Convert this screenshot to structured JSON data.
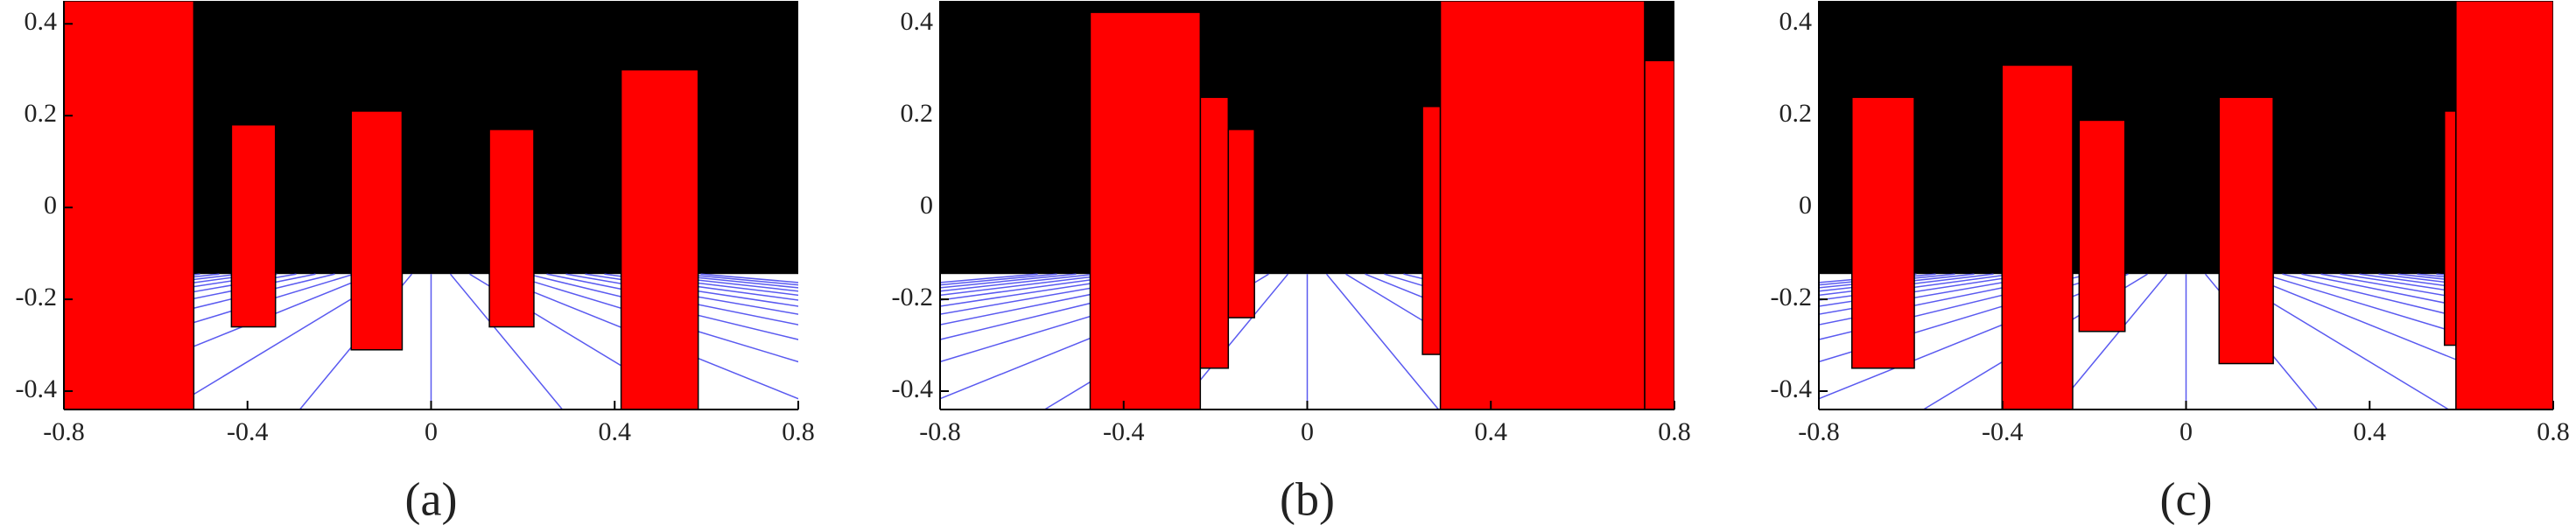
{
  "chart_data": [
    {
      "type": "rect",
      "caption": "(a)",
      "xlim": [
        -0.8,
        0.8
      ],
      "ylim": [
        -0.44,
        0.45
      ],
      "xticks": [
        -0.8,
        -0.4,
        0,
        0.4,
        0.8
      ],
      "yticks": [
        -0.4,
        -0.2,
        0,
        0.2,
        0.4
      ],
      "horizon": -0.145,
      "sky_color": "#000000",
      "floor_color": "#ffffff",
      "line_color": "#5a5af0",
      "color": "#ff0000",
      "rects": [
        {
          "x": [
            -0.8,
            -0.517
          ],
          "y": [
            -0.44,
            0.45
          ]
        },
        {
          "x": [
            -0.435,
            -0.339
          ],
          "y": [
            -0.26,
            0.18
          ]
        },
        {
          "x": [
            -0.174,
            -0.063
          ],
          "y": [
            -0.31,
            0.21
          ]
        },
        {
          "x": [
            0.127,
            0.224
          ],
          "y": [
            -0.26,
            0.17
          ]
        },
        {
          "x": [
            0.414,
            0.582
          ],
          "y": [
            -0.44,
            0.3
          ]
        }
      ]
    },
    {
      "type": "rect",
      "caption": "(b)",
      "xlim": [
        -0.8,
        0.8
      ],
      "ylim": [
        -0.44,
        0.45
      ],
      "xticks": [
        -0.8,
        -0.4,
        0,
        0.4,
        0.8
      ],
      "yticks": [
        -0.4,
        -0.2,
        0,
        0.2,
        0.4
      ],
      "horizon": -0.145,
      "sky_color": "#000000",
      "floor_color": "#ffffff",
      "line_color": "#5a5af0",
      "color": "#ff0000",
      "rects": [
        {
          "x": [
            -0.233,
            -0.172
          ],
          "y": [
            -0.35,
            0.24
          ]
        },
        {
          "x": [
            -0.172,
            -0.115
          ],
          "y": [
            -0.24,
            0.17
          ]
        },
        {
          "x": [
            -0.473,
            -0.233
          ],
          "y": [
            -0.44,
            0.425
          ]
        },
        {
          "x": [
            0.251,
            0.29
          ],
          "y": [
            -0.32,
            0.22
          ]
        },
        {
          "x": [
            0.735,
            0.8
          ],
          "y": [
            -0.44,
            0.32
          ]
        },
        {
          "x": [
            0.29,
            0.735
          ],
          "y": [
            -0.44,
            0.45
          ]
        }
      ]
    },
    {
      "type": "rect",
      "caption": "(c)",
      "xlim": [
        -0.8,
        0.8
      ],
      "ylim": [
        -0.44,
        0.45
      ],
      "xticks": [
        -0.8,
        -0.4,
        0,
        0.4,
        0.8
      ],
      "yticks": [
        -0.4,
        -0.2,
        0,
        0.2,
        0.4
      ],
      "horizon": -0.145,
      "sky_color": "#000000",
      "floor_color": "#ffffff",
      "line_color": "#5a5af0",
      "color": "#ff0000",
      "rects": [
        {
          "x": [
            -0.728,
            -0.592
          ],
          "y": [
            -0.35,
            0.24
          ]
        },
        {
          "x": [
            -0.401,
            -0.247
          ],
          "y": [
            -0.44,
            0.31
          ]
        },
        {
          "x": [
            -0.233,
            -0.133
          ],
          "y": [
            -0.27,
            0.19
          ]
        },
        {
          "x": [
            0.072,
            0.19
          ],
          "y": [
            -0.34,
            0.24
          ]
        },
        {
          "x": [
            0.563,
            0.588
          ],
          "y": [
            -0.3,
            0.21
          ]
        },
        {
          "x": [
            0.588,
            0.8
          ],
          "y": [
            -0.44,
            0.45
          ]
        }
      ]
    }
  ]
}
